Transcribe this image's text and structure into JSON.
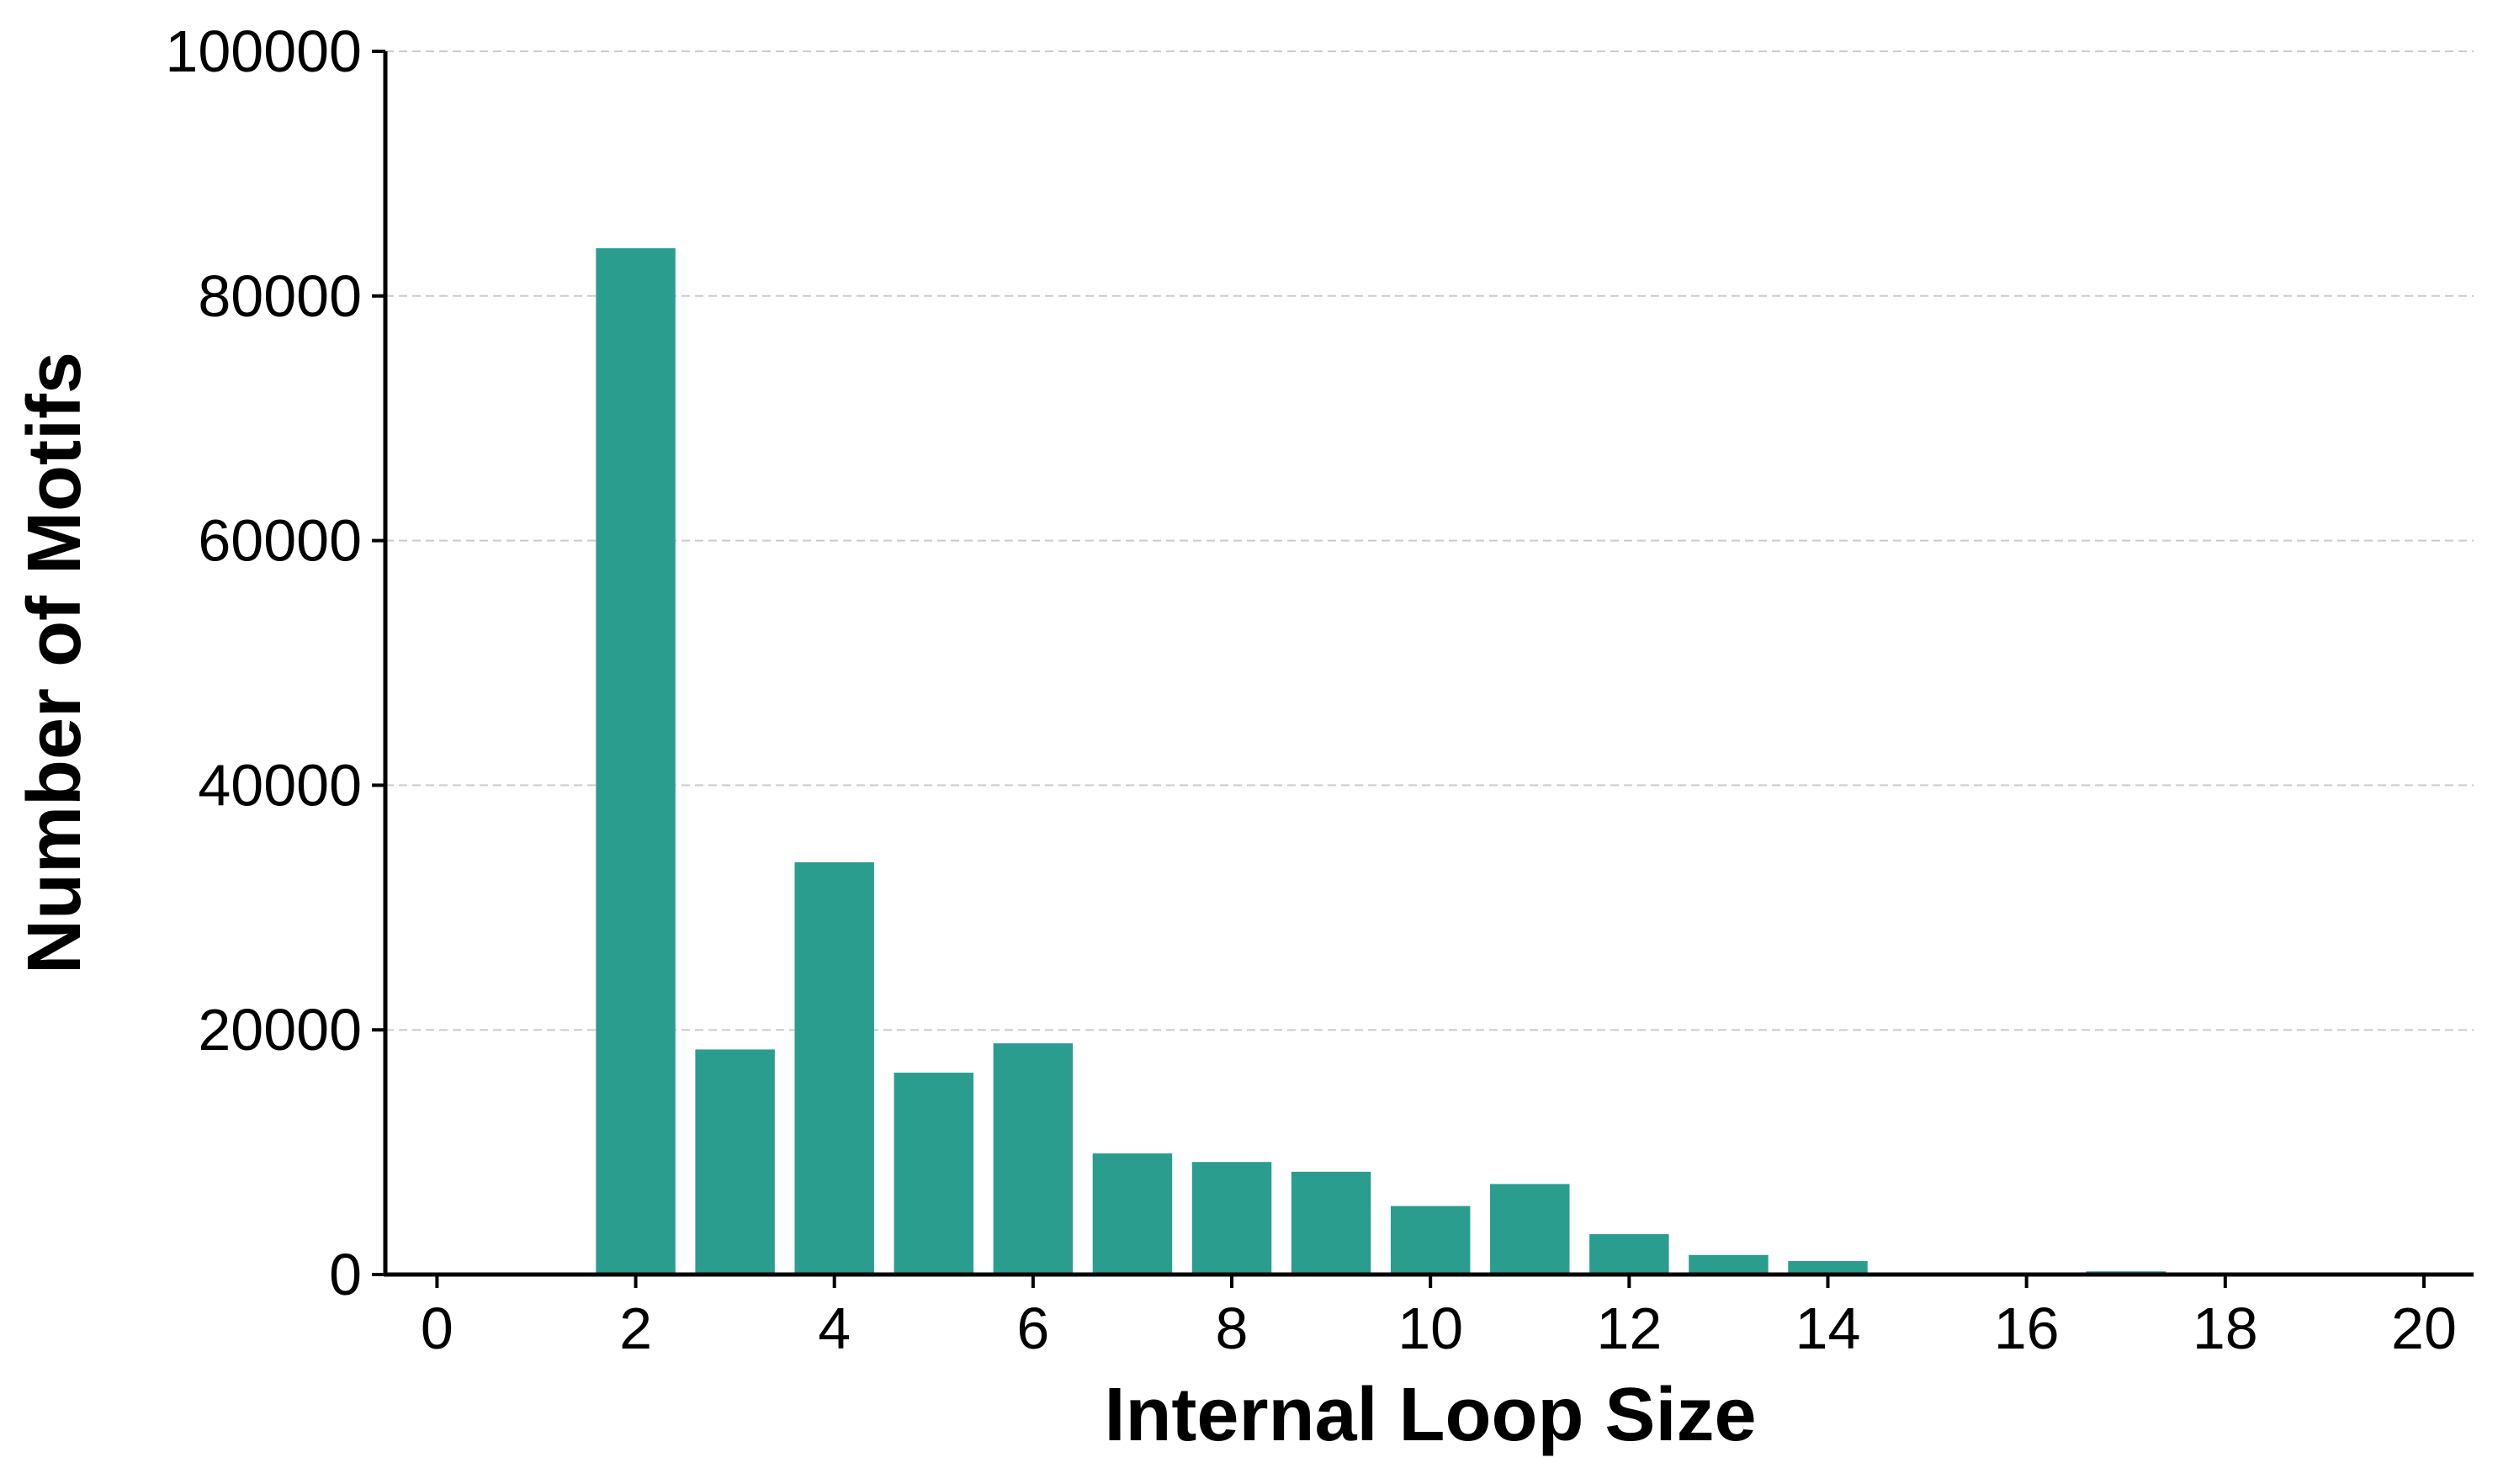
{
  "chart_data": {
    "type": "bar",
    "title": "",
    "xlabel": "Internal Loop Size",
    "ylabel": "Number of Motifs",
    "x": [
      2,
      3,
      4,
      5,
      6,
      7,
      8,
      9,
      10,
      11,
      12,
      13,
      14,
      15,
      16,
      17,
      18,
      19
    ],
    "values": [
      83900,
      18400,
      33700,
      16500,
      18900,
      9900,
      9200,
      8400,
      5600,
      7400,
      3300,
      1600,
      1100,
      0,
      120,
      260,
      0,
      50
    ],
    "xlim": [
      -0.52,
      20.5
    ],
    "ylim": [
      0,
      100000
    ],
    "xticks": [
      0,
      2,
      4,
      6,
      8,
      10,
      12,
      14,
      16,
      18,
      20
    ],
    "yticks": [
      0,
      20000,
      40000,
      60000,
      80000,
      100000
    ],
    "grid": "y-dashed",
    "bar_color": "#2a9d8f",
    "legend": "none"
  }
}
